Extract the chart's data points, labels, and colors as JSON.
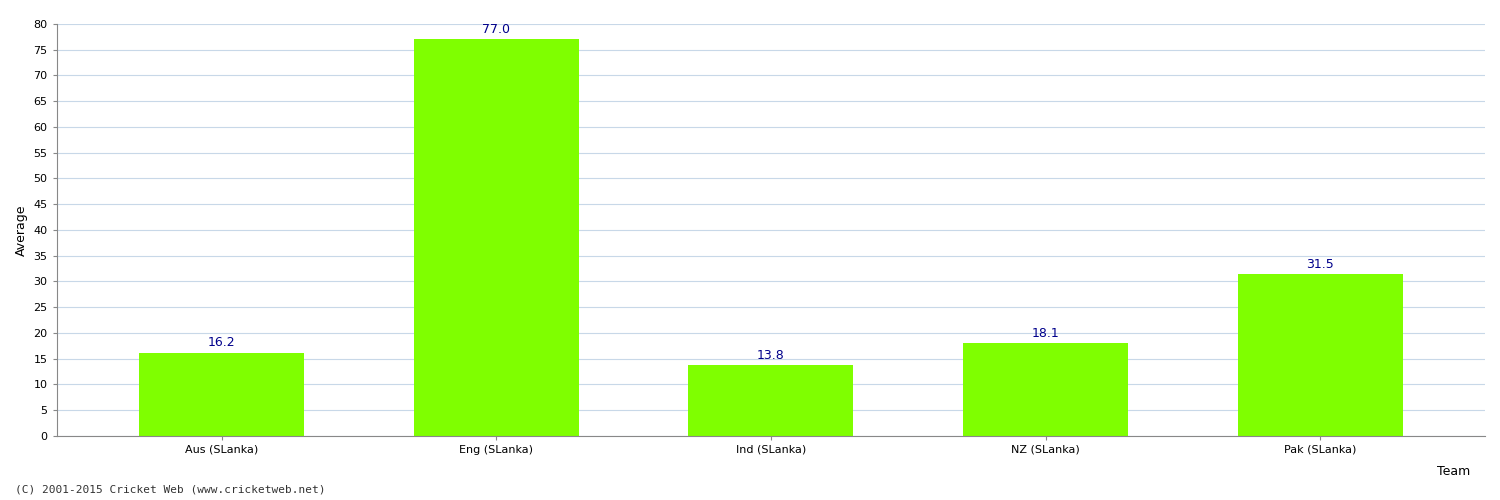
{
  "categories": [
    "Aus (SLanka)",
    "Eng (SLanka)",
    "Ind (SLanka)",
    "NZ (SLanka)",
    "Pak (SLanka)"
  ],
  "values": [
    16.2,
    77.0,
    13.8,
    18.1,
    31.5
  ],
  "bar_color": "#7fff00",
  "bar_edge_color": "#7fff00",
  "value_color": "#00008b",
  "value_fontsize": 9,
  "xlabel": "Team",
  "ylabel": "Average",
  "ylim": [
    0,
    80
  ],
  "yticks": [
    0,
    5,
    10,
    15,
    20,
    25,
    30,
    35,
    40,
    45,
    50,
    55,
    60,
    65,
    70,
    75,
    80
  ],
  "grid_color": "#c8d8e8",
  "background_color": "#ffffff",
  "footer": "(C) 2001-2015 Cricket Web (www.cricketweb.net)",
  "footer_fontsize": 8,
  "footer_color": "#333333",
  "xlabel_fontsize": 9,
  "ylabel_fontsize": 9,
  "tick_fontsize": 8,
  "bar_width": 0.6
}
